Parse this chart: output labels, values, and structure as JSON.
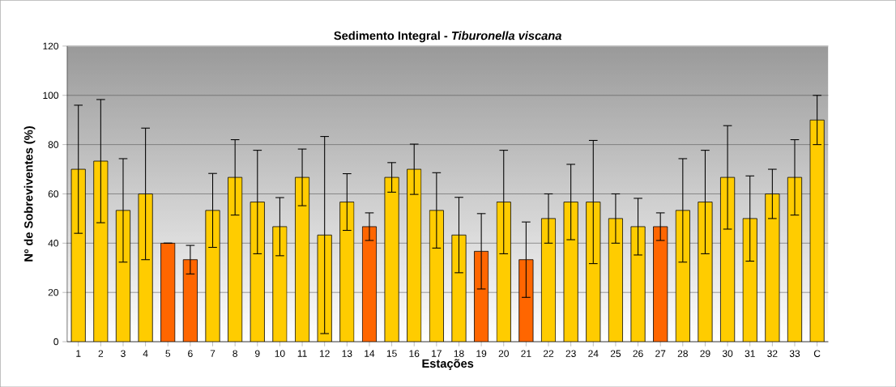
{
  "chart_data": {
    "type": "bar",
    "title": "Sedimento Integral - *Tiburonella viscana*",
    "xlabel": "Estações",
    "ylabel": "Nº de Sobreviventes (%)",
    "categories": [
      "1",
      "2",
      "3",
      "4",
      "5",
      "6",
      "7",
      "8",
      "9",
      "10",
      "11",
      "12",
      "13",
      "14",
      "15",
      "16",
      "17",
      "18",
      "19",
      "20",
      "21",
      "22",
      "23",
      "24",
      "25",
      "26",
      "27",
      "28",
      "29",
      "30",
      "31",
      "32",
      "33",
      "C"
    ],
    "values": [
      70,
      73.3,
      53.3,
      60,
      40,
      33.3,
      53.3,
      66.7,
      56.7,
      46.7,
      66.7,
      43.3,
      56.7,
      46.7,
      66.7,
      70,
      53.3,
      43.3,
      36.7,
      56.7,
      33.3,
      50,
      56.7,
      56.7,
      50,
      46.7,
      46.7,
      53.3,
      56.7,
      66.7,
      50,
      60,
      66.7,
      90
    ],
    "errors": [
      26,
      25,
      21,
      26.7,
      0,
      5.8,
      15,
      15.3,
      21,
      11.8,
      11.5,
      40,
      11.5,
      5.6,
      6,
      10.2,
      15.3,
      15.3,
      15.3,
      21,
      15.3,
      10,
      15.3,
      25,
      10,
      11.5,
      5.6,
      21,
      21,
      21,
      17.3,
      10,
      15.3,
      10
    ],
    "colors": [
      "#ffcc00",
      "#ffcc00",
      "#ffcc00",
      "#ffcc00",
      "#ff6600",
      "#ff6600",
      "#ffcc00",
      "#ffcc00",
      "#ffcc00",
      "#ffcc00",
      "#ffcc00",
      "#ffcc00",
      "#ffcc00",
      "#ff6600",
      "#ffcc00",
      "#ffcc00",
      "#ffcc00",
      "#ffcc00",
      "#ff6600",
      "#ffcc00",
      "#ff6600",
      "#ffcc00",
      "#ffcc00",
      "#ffcc00",
      "#ffcc00",
      "#ffcc00",
      "#ff6600",
      "#ffcc00",
      "#ffcc00",
      "#ffcc00",
      "#ffcc00",
      "#ffcc00",
      "#ffcc00",
      "#ffcc00"
    ],
    "ylim": [
      0,
      120
    ],
    "yticks": [
      0,
      20,
      40,
      60,
      80,
      100,
      120
    ],
    "grid": "y"
  }
}
